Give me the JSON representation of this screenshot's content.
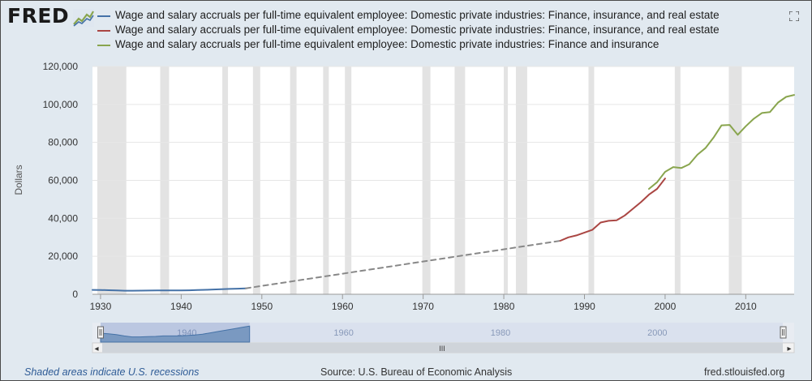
{
  "logo": {
    "text": "FRED"
  },
  "colors": {
    "blue": "#4572a7",
    "red": "#aa4643",
    "green": "#89a54e",
    "dashed": "#888888",
    "recession": "#e3e3e3",
    "plot_bg": "#ffffff"
  },
  "legend": [
    {
      "label": "Wage and salary accruals per full-time equivalent employee: Domestic private industries: Finance, insurance, and real estate",
      "color": "#4572a7"
    },
    {
      "label": "Wage and salary accruals per full-time equivalent employee: Domestic private industries: Finance, insurance, and real estate",
      "color": "#aa4643"
    },
    {
      "label": "Wage and salary accruals per full-time equivalent employee: Domestic private industries: Finance and insurance",
      "color": "#89a54e"
    }
  ],
  "chart_data": {
    "type": "line",
    "ylabel": "Dollars",
    "xlim": [
      1929,
      2016
    ],
    "ylim": [
      0,
      120000
    ],
    "yticks": [
      0,
      20000,
      40000,
      60000,
      80000,
      100000,
      120000
    ],
    "ytick_labels": [
      "0",
      "20,000",
      "40,000",
      "60,000",
      "80,000",
      "100,000",
      "120,000"
    ],
    "xticks": [
      1930,
      1940,
      1950,
      1960,
      1970,
      1980,
      1990,
      2000,
      2010
    ],
    "xtick_labels": [
      "1930",
      "1940",
      "1950",
      "1960",
      "1970",
      "1980",
      "1990",
      "2000",
      "2010"
    ],
    "grid": true,
    "recessions": [
      [
        1929.6,
        1933.2
      ],
      [
        1937.4,
        1938.5
      ],
      [
        1945.1,
        1945.8
      ],
      [
        1948.9,
        1949.8
      ],
      [
        1953.5,
        1954.3
      ],
      [
        1957.6,
        1958.3
      ],
      [
        1960.3,
        1961.1
      ],
      [
        1969.9,
        1970.9
      ],
      [
        1973.9,
        1975.2
      ],
      [
        1980.0,
        1980.5
      ],
      [
        1981.5,
        1982.9
      ],
      [
        1990.5,
        1991.2
      ],
      [
        2001.2,
        2001.9
      ],
      [
        2007.9,
        2009.5
      ]
    ],
    "series": [
      {
        "color": "#4572a7",
        "x": [
          1929,
          1930,
          1931,
          1932,
          1933,
          1934,
          1935,
          1936,
          1937,
          1938,
          1939,
          1940,
          1941,
          1942,
          1943,
          1944,
          1945,
          1946,
          1947,
          1948
        ],
        "y": [
          2300,
          2250,
          2150,
          2000,
          1900,
          1900,
          1920,
          1950,
          2000,
          2000,
          2000,
          2050,
          2100,
          2200,
          2350,
          2500,
          2650,
          2800,
          2950,
          3100
        ]
      },
      {
        "color": "#888888",
        "dashed": true,
        "x": [
          1948,
          1987
        ],
        "y": [
          3100,
          28200
        ]
      },
      {
        "color": "#aa4643",
        "x": [
          1987,
          1988,
          1989,
          1990,
          1991,
          1992,
          1993,
          1994,
          1995,
          1996,
          1997,
          1998,
          1999,
          2000
        ],
        "y": [
          28200,
          30000,
          31000,
          32500,
          34000,
          37800,
          38700,
          39000,
          41500,
          45000,
          48500,
          52500,
          55500,
          61000
        ]
      },
      {
        "color": "#89a54e",
        "x": [
          1998,
          1999,
          2000,
          2001,
          2002,
          2003,
          2004,
          2005,
          2006,
          2007,
          2008,
          2009,
          2010,
          2011,
          2012,
          2013,
          2014,
          2015,
          2016
        ],
        "y": [
          55500,
          59000,
          64500,
          67000,
          66500,
          68500,
          73500,
          77000,
          82500,
          89000,
          89200,
          84000,
          88500,
          92500,
          95500,
          96000,
          101000,
          104000,
          105000
        ]
      }
    ]
  },
  "navigator": {
    "tick_labels": [
      "1940",
      "1960",
      "1980",
      "2000"
    ],
    "tick_years": [
      1940,
      1960,
      1980,
      2000
    ],
    "selected_range": [
      1929,
      1948
    ],
    "scrollbar_grip": "III",
    "left_arrow": "◂",
    "right_arrow": "▸"
  },
  "footer": {
    "left": "Shaded areas indicate U.S. recessions",
    "center": "Source: U.S. Bureau of Economic Analysis",
    "right": "fred.stlouisfed.org"
  }
}
